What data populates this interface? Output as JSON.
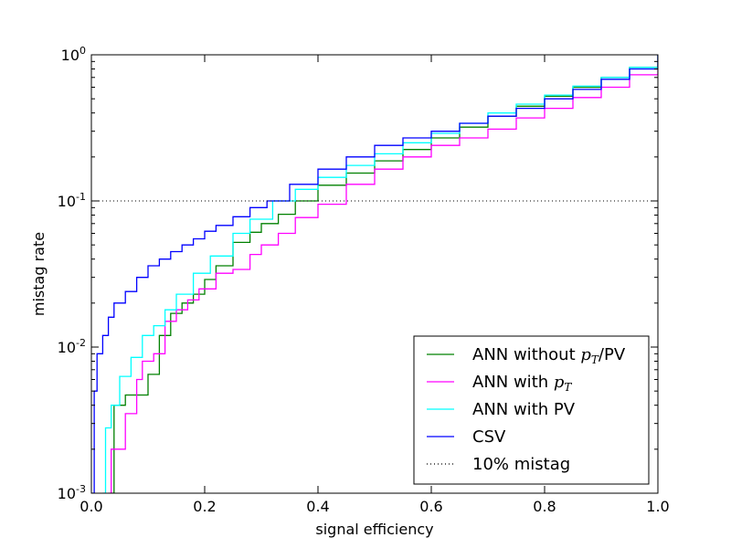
{
  "chart_data": {
    "type": "line",
    "xlabel": "signal efficiency",
    "ylabel": "mistag rate",
    "xlim": [
      0.0,
      1.0
    ],
    "ylim": [
      0.001,
      1.0
    ],
    "yscale": "log",
    "grid": false,
    "legend_position": "lower-right",
    "x_ticks": [
      "0.0",
      "0.2",
      "0.4",
      "0.6",
      "0.8",
      "1.0"
    ],
    "x_tick_values": [
      0.0,
      0.2,
      0.4,
      0.6,
      0.8,
      1.0
    ],
    "y_ticks": [
      {
        "value": 0.001,
        "base": "10",
        "exp": "-3"
      },
      {
        "value": 0.01,
        "base": "10",
        "exp": "-2"
      },
      {
        "value": 0.1,
        "base": "10",
        "exp": "-1"
      },
      {
        "value": 1.0,
        "base": "10",
        "exp": "0"
      }
    ],
    "reference_line": {
      "name": "10% mistag",
      "y": 0.1,
      "style": "dotted",
      "color": "#000000"
    },
    "series": [
      {
        "name": "ANN without p_T/PV",
        "legend_parts": [
          "ANN without ",
          "p",
          "T",
          "/PV"
        ],
        "color": "#008000",
        "x": [
          0.035,
          0.04,
          0.06,
          0.08,
          0.1,
          0.12,
          0.14,
          0.16,
          0.18,
          0.2,
          0.22,
          0.25,
          0.28,
          0.3,
          0.33,
          0.36,
          0.4,
          0.45,
          0.5,
          0.55,
          0.6,
          0.65,
          0.7,
          0.75,
          0.8,
          0.85,
          0.9,
          0.95,
          1.0
        ],
        "y": [
          0.001,
          0.004,
          0.0047,
          0.0047,
          0.0065,
          0.012,
          0.017,
          0.02,
          0.023,
          0.029,
          0.036,
          0.052,
          0.061,
          0.07,
          0.081,
          0.1,
          0.128,
          0.155,
          0.188,
          0.225,
          0.27,
          0.32,
          0.38,
          0.445,
          0.52,
          0.6,
          0.7,
          0.82,
          1.0
        ]
      },
      {
        "name": "ANN with p_T",
        "legend_parts": [
          "ANN with ",
          "p",
          "T",
          ""
        ],
        "color": "#ff00ff",
        "x": [
          0.03,
          0.035,
          0.06,
          0.08,
          0.09,
          0.11,
          0.13,
          0.15,
          0.17,
          0.19,
          0.22,
          0.25,
          0.28,
          0.3,
          0.33,
          0.36,
          0.4,
          0.45,
          0.5,
          0.55,
          0.6,
          0.65,
          0.7,
          0.75,
          0.8,
          0.85,
          0.9,
          0.95,
          1.0
        ],
        "y": [
          0.001,
          0.002,
          0.0035,
          0.006,
          0.008,
          0.009,
          0.015,
          0.018,
          0.021,
          0.025,
          0.032,
          0.034,
          0.043,
          0.05,
          0.06,
          0.077,
          0.095,
          0.13,
          0.165,
          0.2,
          0.24,
          0.27,
          0.31,
          0.37,
          0.43,
          0.51,
          0.6,
          0.73,
          1.0
        ]
      },
      {
        "name": "ANN with PV",
        "legend_parts": [
          "ANN with PV",
          "",
          "",
          ""
        ],
        "color": "#00ffff",
        "x": [
          0.02,
          0.025,
          0.035,
          0.05,
          0.07,
          0.09,
          0.11,
          0.13,
          0.15,
          0.18,
          0.21,
          0.25,
          0.28,
          0.32,
          0.36,
          0.4,
          0.45,
          0.5,
          0.55,
          0.6,
          0.65,
          0.7,
          0.75,
          0.8,
          0.85,
          0.9,
          0.95,
          1.0
        ],
        "y": [
          0.001,
          0.0028,
          0.004,
          0.0063,
          0.0085,
          0.012,
          0.014,
          0.018,
          0.023,
          0.032,
          0.042,
          0.06,
          0.075,
          0.1,
          0.12,
          0.145,
          0.175,
          0.21,
          0.25,
          0.29,
          0.34,
          0.4,
          0.46,
          0.53,
          0.61,
          0.7,
          0.82,
          1.0
        ]
      },
      {
        "name": "CSV",
        "legend_parts": [
          "CSV",
          "",
          "",
          ""
        ],
        "color": "#0000ff",
        "x": [
          0.0,
          0.005,
          0.01,
          0.02,
          0.03,
          0.04,
          0.06,
          0.08,
          0.1,
          0.12,
          0.14,
          0.16,
          0.18,
          0.2,
          0.22,
          0.25,
          0.28,
          0.31,
          0.35,
          0.4,
          0.45,
          0.5,
          0.55,
          0.6,
          0.65,
          0.7,
          0.75,
          0.8,
          0.85,
          0.9,
          0.95,
          1.0
        ],
        "y": [
          0.001,
          0.005,
          0.009,
          0.012,
          0.016,
          0.02,
          0.024,
          0.03,
          0.036,
          0.04,
          0.045,
          0.05,
          0.055,
          0.062,
          0.068,
          0.078,
          0.09,
          0.1,
          0.13,
          0.165,
          0.2,
          0.24,
          0.27,
          0.3,
          0.34,
          0.38,
          0.43,
          0.5,
          0.58,
          0.68,
          0.8,
          1.0
        ]
      }
    ]
  }
}
